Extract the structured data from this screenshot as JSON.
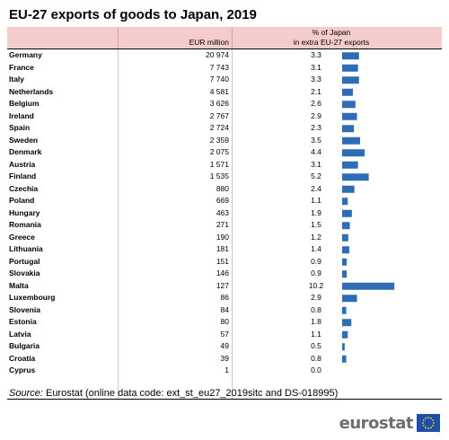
{
  "title": "EU-27 exports of goods to Japan, 2019",
  "table": {
    "col1_header": "EUR million",
    "col2_header_line1": "% of Japan",
    "col2_header_line2": "in extra EU-27 exports"
  },
  "chart_data": {
    "type": "table",
    "title": "EU-27 exports of goods to Japan, 2019",
    "columns": [
      "",
      "EUR million",
      "% of Japan in extra EU-27 exports"
    ],
    "rows": [
      {
        "country": "Germany",
        "eur": "20 974",
        "pct": 3.3
      },
      {
        "country": "France",
        "eur": "7 743",
        "pct": 3.1
      },
      {
        "country": "Italy",
        "eur": "7 740",
        "pct": 3.3
      },
      {
        "country": "Netherlands",
        "eur": "4 581",
        "pct": 2.1
      },
      {
        "country": "Belgium",
        "eur": "3 626",
        "pct": 2.6
      },
      {
        "country": "Ireland",
        "eur": "2 767",
        "pct": 2.9
      },
      {
        "country": "Spain",
        "eur": "2 724",
        "pct": 2.3
      },
      {
        "country": "Sweden",
        "eur": "2 359",
        "pct": 3.5
      },
      {
        "country": "Denmark",
        "eur": "2 075",
        "pct": 4.4
      },
      {
        "country": "Austria",
        "eur": "1 571",
        "pct": 3.1
      },
      {
        "country": "Finland",
        "eur": "1 535",
        "pct": 5.2
      },
      {
        "country": "Czechia",
        "eur": "880",
        "pct": 2.4
      },
      {
        "country": "Poland",
        "eur": "669",
        "pct": 1.1
      },
      {
        "country": "Hungary",
        "eur": "463",
        "pct": 1.9
      },
      {
        "country": "Romania",
        "eur": "271",
        "pct": 1.5
      },
      {
        "country": "Greece",
        "eur": "190",
        "pct": 1.2
      },
      {
        "country": "Lithuania",
        "eur": "181",
        "pct": 1.4
      },
      {
        "country": "Portugal",
        "eur": "151",
        "pct": 0.9
      },
      {
        "country": "Slovakia",
        "eur": "146",
        "pct": 0.9
      },
      {
        "country": "Malta",
        "eur": "127",
        "pct": 10.2
      },
      {
        "country": "Luxembourg",
        "eur": "86",
        "pct": 2.9
      },
      {
        "country": "Slovenia",
        "eur": "84",
        "pct": 0.8
      },
      {
        "country": "Estonia",
        "eur": "80",
        "pct": 1.8
      },
      {
        "country": "Latvia",
        "eur": "57",
        "pct": 1.1
      },
      {
        "country": "Bulgaria",
        "eur": "49",
        "pct": 0.5
      },
      {
        "country": "Croatia",
        "eur": "39",
        "pct": 0.8
      },
      {
        "country": "Cyprus",
        "eur": "1",
        "pct": 0.0
      }
    ],
    "bar_color": "#2e6db4",
    "header_color": "#f4cccc"
  },
  "source": {
    "label": "Source:",
    "text": " Eurostat (online data code: ext_st_eu27_2019sitc and DS-018995)"
  },
  "logo": {
    "text": "eurostat",
    "flag_icon": "eu-flag-icon"
  }
}
